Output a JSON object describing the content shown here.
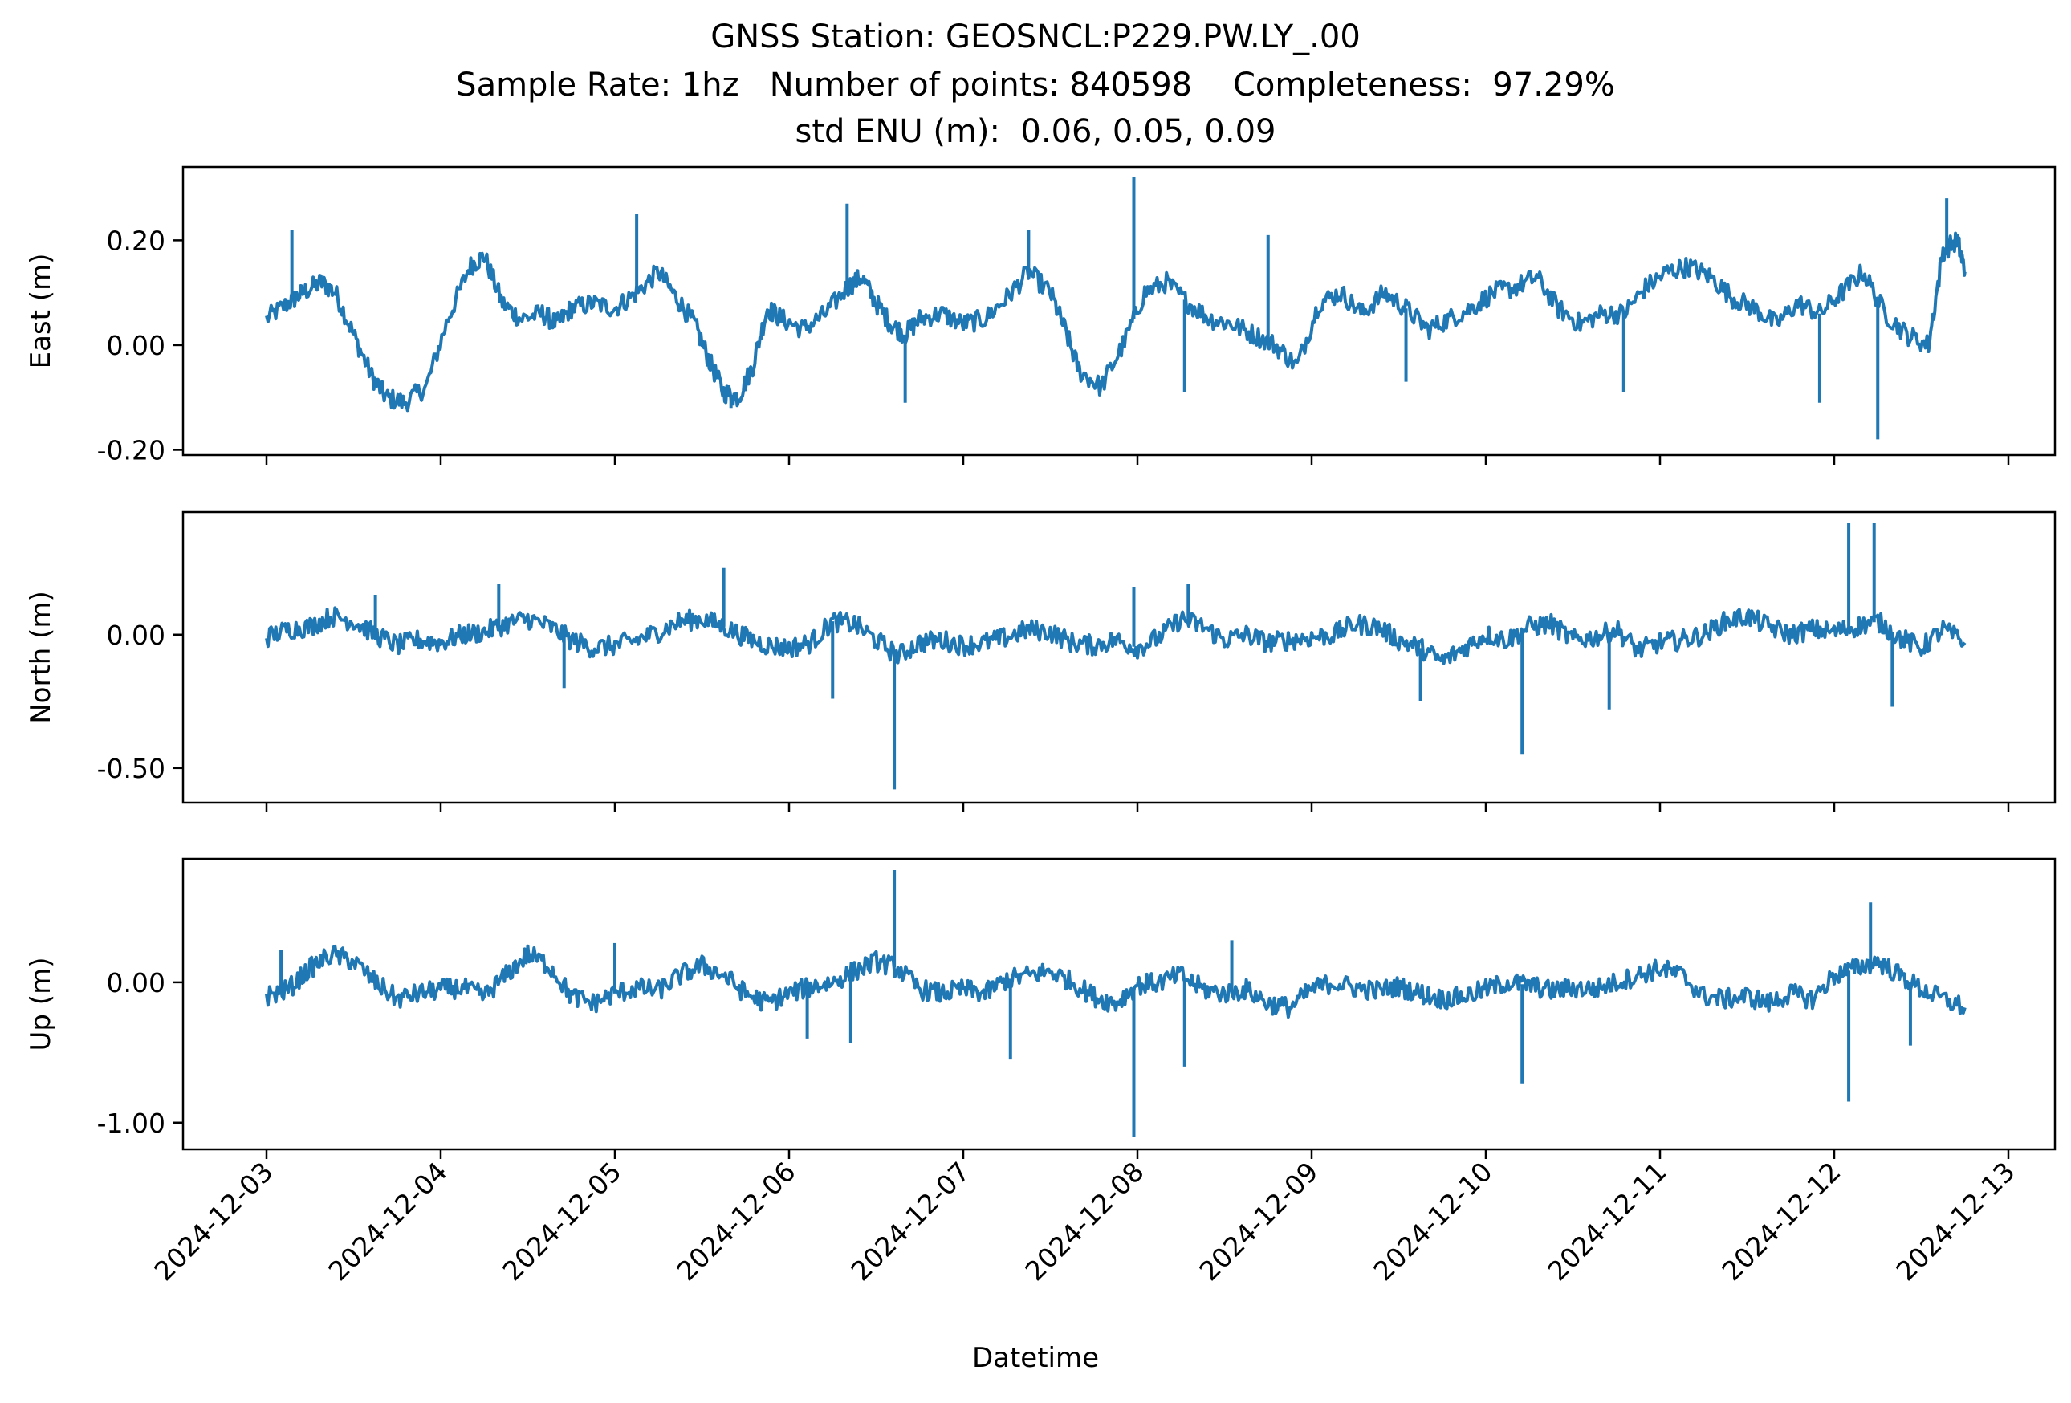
{
  "title_lines": [
    "GNSS Station: GEOSNCL:P229.PW.LY_.00",
    "Sample Rate: 1hz   Number of points: 840598    Completeness:  97.29%",
    "std ENU (m):  0.06, 0.05, 0.09"
  ],
  "colors": {
    "series": "#1f77b4",
    "axes": "#000000",
    "background": "#ffffff"
  },
  "chart_data": {
    "type": "line",
    "xlabel": "Datetime",
    "x_ticks": [
      "2024-12-03",
      "2024-12-04",
      "2024-12-05",
      "2024-12-06",
      "2024-12-07",
      "2024-12-08",
      "2024-12-09",
      "2024-12-10",
      "2024-12-11",
      "2024-12-12",
      "2024-12-13"
    ],
    "xlim": [
      "2024-12-02T12:00",
      "2024-12-13T00:00"
    ],
    "grid": false,
    "panels": [
      {
        "name": "east",
        "ylabel": "East (m)",
        "ylim": [
          -0.21,
          0.34
        ],
        "yticks": [
          0.2,
          0.0,
          -0.2
        ],
        "ytick_labels": [
          "0.20",
          "0.00",
          "-0.20"
        ],
        "series": [
          {
            "t": [
              "2024-12-03T00:00",
              "2024-12-03T03:00",
              "2024-12-03T05:00",
              "2024-12-03T07:30",
              "2024-12-03T09:30",
              "2024-12-03T12:00",
              "2024-12-03T14:30",
              "2024-12-03T16:30",
              "2024-12-03T19:00",
              "2024-12-03T22:00",
              "2024-12-04T01:00",
              "2024-12-04T04:00",
              "2024-12-04T06:00",
              "2024-12-04T08:30",
              "2024-12-04T11:00",
              "2024-12-04T14:00",
              "2024-12-04T16:00",
              "2024-12-04T18:00",
              "2024-12-04T21:00",
              "2024-12-05T00:00",
              "2024-12-05T03:00",
              "2024-12-05T06:00",
              "2024-12-05T08:30",
              "2024-12-05T11:00",
              "2024-12-05T13:00",
              "2024-12-05T15:00",
              "2024-12-05T17:00",
              "2024-12-05T19:00",
              "2024-12-05T21:00",
              "2024-12-05T23:00",
              "2024-12-06T02:00",
              "2024-12-06T05:00",
              "2024-12-06T08:00",
              "2024-12-06T10:00",
              "2024-12-06T12:00",
              "2024-12-06T14:00",
              "2024-12-06T16:00",
              "2024-12-06T18:00",
              "2024-12-06T21:00",
              "2024-12-07T00:00",
              "2024-12-07T03:00",
              "2024-12-07T06:00",
              "2024-12-07T09:00",
              "2024-12-07T12:00",
              "2024-12-07T14:00",
              "2024-12-07T16:00",
              "2024-12-07T19:00",
              "2024-12-07T22:00",
              "2024-12-08T01:00",
              "2024-12-08T04:00",
              "2024-12-08T07:00",
              "2024-12-08T10:00",
              "2024-12-08T13:00",
              "2024-12-08T16:00",
              "2024-12-08T19:00",
              "2024-12-08T22:00",
              "2024-12-09T01:00",
              "2024-12-09T04:00",
              "2024-12-09T07:00",
              "2024-12-09T10:00",
              "2024-12-09T13:00",
              "2024-12-09T16:00",
              "2024-12-09T19:00",
              "2024-12-09T22:00",
              "2024-12-10T01:00",
              "2024-12-10T04:00",
              "2024-12-10T07:00",
              "2024-12-10T10:00",
              "2024-12-10T13:00",
              "2024-12-10T16:00",
              "2024-12-10T19:00",
              "2024-12-10T22:00",
              "2024-12-11T01:00",
              "2024-12-11T04:00",
              "2024-12-11T07:00",
              "2024-12-11T10:00",
              "2024-12-11T13:00",
              "2024-12-11T16:00",
              "2024-12-11T19:00",
              "2024-12-11T22:00",
              "2024-12-12T01:00",
              "2024-12-12T04:00",
              "2024-12-12T07:00",
              "2024-12-12T10:00",
              "2024-12-12T13:00",
              "2024-12-12T15:00",
              "2024-12-12T17:00",
              "2024-12-12T18:00"
            ],
            "values": [
              0.05,
              0.08,
              0.1,
              0.12,
              0.1,
              0.02,
              -0.06,
              -0.1,
              -0.11,
              -0.08,
              0.05,
              0.15,
              0.17,
              0.08,
              0.05,
              0.06,
              0.04,
              0.07,
              0.08,
              0.07,
              0.1,
              0.14,
              0.09,
              0.04,
              -0.03,
              -0.09,
              -0.1,
              -0.04,
              0.07,
              0.05,
              0.03,
              0.06,
              0.11,
              0.13,
              0.08,
              0.04,
              0.02,
              0.05,
              0.06,
              0.04,
              0.05,
              0.09,
              0.14,
              0.1,
              0.03,
              -0.05,
              -0.08,
              0.0,
              0.1,
              0.12,
              0.08,
              0.05,
              0.04,
              0.02,
              0.0,
              -0.04,
              0.08,
              0.1,
              0.06,
              0.1,
              0.07,
              0.03,
              0.05,
              0.07,
              0.1,
              0.11,
              0.13,
              0.07,
              0.04,
              0.06,
              0.06,
              0.11,
              0.14,
              0.15,
              0.13,
              0.09,
              0.07,
              0.04,
              0.08,
              0.06,
              0.1,
              0.14,
              0.06,
              0.02,
              0.0,
              0.18,
              0.2,
              0.14
            ]
          }
        ],
        "spikes": [
          {
            "t": "2024-12-03T03:30",
            "v": 0.22
          },
          {
            "t": "2024-12-05T03:00",
            "v": 0.25
          },
          {
            "t": "2024-12-05T16:00",
            "v": -0.12
          },
          {
            "t": "2024-12-06T08:00",
            "v": 0.27
          },
          {
            "t": "2024-12-06T16:00",
            "v": -0.11
          },
          {
            "t": "2024-12-07T09:00",
            "v": 0.22
          },
          {
            "t": "2024-12-07T23:30",
            "v": 0.32
          },
          {
            "t": "2024-12-08T06:30",
            "v": -0.09
          },
          {
            "t": "2024-12-08T18:00",
            "v": 0.21
          },
          {
            "t": "2024-12-09T13:00",
            "v": -0.07
          },
          {
            "t": "2024-12-10T19:00",
            "v": -0.09
          },
          {
            "t": "2024-12-11T22:00",
            "v": -0.11
          },
          {
            "t": "2024-12-12T06:00",
            "v": -0.18
          },
          {
            "t": "2024-12-12T15:30",
            "v": 0.28
          }
        ]
      },
      {
        "name": "north",
        "ylabel": "North (m)",
        "ylim": [
          -0.63,
          0.46
        ],
        "yticks": [
          0.0,
          -0.5
        ],
        "ytick_labels": [
          "0.00",
          "-0.50"
        ],
        "series": [
          {
            "t": [
              "2024-12-03T00:00",
              "2024-12-03T03:00",
              "2024-12-03T06:00",
              "2024-12-03T09:00",
              "2024-12-03T12:00",
              "2024-12-03T15:00",
              "2024-12-03T18:00",
              "2024-12-03T21:00",
              "2024-12-04T00:00",
              "2024-12-04T03:00",
              "2024-12-04T06:00",
              "2024-12-04T09:00",
              "2024-12-04T12:00",
              "2024-12-04T15:00",
              "2024-12-04T18:00",
              "2024-12-04T21:00",
              "2024-12-05T00:00",
              "2024-12-05T03:00",
              "2024-12-05T06:00",
              "2024-12-05T09:00",
              "2024-12-05T12:00",
              "2024-12-05T15:00",
              "2024-12-05T18:00",
              "2024-12-05T21:00",
              "2024-12-06T00:00",
              "2024-12-06T03:00",
              "2024-12-06T06:00",
              "2024-12-06T09:00",
              "2024-12-06T12:00",
              "2024-12-06T15:00",
              "2024-12-06T18:00",
              "2024-12-06T21:00",
              "2024-12-07T00:00",
              "2024-12-07T03:00",
              "2024-12-07T06:00",
              "2024-12-07T09:00",
              "2024-12-07T12:00",
              "2024-12-07T15:00",
              "2024-12-07T18:00",
              "2024-12-07T21:00",
              "2024-12-08T00:00",
              "2024-12-08T03:00",
              "2024-12-08T06:00",
              "2024-12-08T09:00",
              "2024-12-08T12:00",
              "2024-12-08T15:00",
              "2024-12-08T18:00",
              "2024-12-08T21:00",
              "2024-12-09T00:00",
              "2024-12-09T03:00",
              "2024-12-09T06:00",
              "2024-12-09T09:00",
              "2024-12-09T12:00",
              "2024-12-09T15:00",
              "2024-12-09T18:00",
              "2024-12-09T21:00",
              "2024-12-10T00:00",
              "2024-12-10T03:00",
              "2024-12-10T06:00",
              "2024-12-10T09:00",
              "2024-12-10T12:00",
              "2024-12-10T15:00",
              "2024-12-10T18:00",
              "2024-12-10T21:00",
              "2024-12-11T00:00",
              "2024-12-11T03:00",
              "2024-12-11T06:00",
              "2024-12-11T09:00",
              "2024-12-11T12:00",
              "2024-12-11T15:00",
              "2024-12-11T18:00",
              "2024-12-11T21:00",
              "2024-12-12T00:00",
              "2024-12-12T03:00",
              "2024-12-12T06:00",
              "2024-12-12T09:00",
              "2024-12-12T12:00",
              "2024-12-12T15:00",
              "2024-12-12T18:00"
            ],
            "values": [
              -0.01,
              0.02,
              0.03,
              0.07,
              0.05,
              0.0,
              -0.04,
              -0.02,
              -0.03,
              0.0,
              0.01,
              0.04,
              0.06,
              0.03,
              -0.02,
              -0.05,
              -0.04,
              -0.02,
              0.01,
              0.05,
              0.06,
              0.03,
              -0.01,
              -0.04,
              -0.05,
              -0.03,
              0.05,
              0.04,
              -0.02,
              -0.08,
              -0.03,
              -0.02,
              -0.04,
              -0.03,
              -0.01,
              0.02,
              0.01,
              -0.03,
              -0.04,
              -0.02,
              -0.05,
              -0.01,
              0.06,
              0.03,
              -0.02,
              0.0,
              -0.03,
              -0.02,
              -0.01,
              0.0,
              0.04,
              0.03,
              -0.02,
              -0.05,
              -0.1,
              -0.05,
              0.0,
              -0.02,
              0.03,
              0.04,
              -0.02,
              -0.01,
              0.02,
              -0.06,
              -0.03,
              -0.02,
              0.0,
              0.05,
              0.07,
              0.03,
              0.0,
              0.02,
              0.01,
              0.03,
              0.05,
              -0.01,
              -0.05,
              0.02,
              -0.03
            ]
          }
        ],
        "spikes": [
          {
            "t": "2024-12-03T15:00",
            "v": 0.15
          },
          {
            "t": "2024-12-04T08:00",
            "v": 0.19
          },
          {
            "t": "2024-12-04T17:00",
            "v": -0.2
          },
          {
            "t": "2024-12-05T15:00",
            "v": 0.25
          },
          {
            "t": "2024-12-06T06:00",
            "v": -0.24
          },
          {
            "t": "2024-12-06T14:30",
            "v": -0.58
          },
          {
            "t": "2024-12-07T23:30",
            "v": 0.18
          },
          {
            "t": "2024-12-08T07:00",
            "v": 0.19
          },
          {
            "t": "2024-12-09T15:00",
            "v": -0.25
          },
          {
            "t": "2024-12-10T05:00",
            "v": -0.45
          },
          {
            "t": "2024-12-10T17:00",
            "v": -0.28
          },
          {
            "t": "2024-12-12T02:00",
            "v": 0.42
          },
          {
            "t": "2024-12-12T05:30",
            "v": 0.42
          },
          {
            "t": "2024-12-12T08:00",
            "v": -0.27
          }
        ]
      },
      {
        "name": "up",
        "ylabel": "Up (m)",
        "ylim": [
          -1.19,
          0.88
        ],
        "yticks": [
          0.0,
          -1.0
        ],
        "ytick_labels": [
          "0.00",
          "-1.00"
        ],
        "series": [
          {
            "t": [
              "2024-12-03T00:00",
              "2024-12-03T03:00",
              "2024-12-03T06:00",
              "2024-12-03T09:00",
              "2024-12-03T12:00",
              "2024-12-03T15:00",
              "2024-12-03T18:00",
              "2024-12-03T21:00",
              "2024-12-04T00:00",
              "2024-12-04T03:00",
              "2024-12-04T06:00",
              "2024-12-04T09:00",
              "2024-12-04T12:00",
              "2024-12-04T15:00",
              "2024-12-04T18:00",
              "2024-12-04T21:00",
              "2024-12-05T00:00",
              "2024-12-05T03:00",
              "2024-12-05T06:00",
              "2024-12-05T09:00",
              "2024-12-05T12:00",
              "2024-12-05T15:00",
              "2024-12-05T18:00",
              "2024-12-05T21:00",
              "2024-12-06T00:00",
              "2024-12-06T03:00",
              "2024-12-06T06:00",
              "2024-12-06T09:00",
              "2024-12-06T12:00",
              "2024-12-06T15:00",
              "2024-12-06T18:00",
              "2024-12-06T21:00",
              "2024-12-07T00:00",
              "2024-12-07T03:00",
              "2024-12-07T06:00",
              "2024-12-07T09:00",
              "2024-12-07T12:00",
              "2024-12-07T15:00",
              "2024-12-07T18:00",
              "2024-12-07T21:00",
              "2024-12-08T00:00",
              "2024-12-08T03:00",
              "2024-12-08T06:00",
              "2024-12-08T09:00",
              "2024-12-08T12:00",
              "2024-12-08T15:00",
              "2024-12-08T18:00",
              "2024-12-08T21:00",
              "2024-12-09T00:00",
              "2024-12-09T03:00",
              "2024-12-09T06:00",
              "2024-12-09T09:00",
              "2024-12-09T12:00",
              "2024-12-09T15:00",
              "2024-12-09T18:00",
              "2024-12-09T21:00",
              "2024-12-10T00:00",
              "2024-12-10T03:00",
              "2024-12-10T06:00",
              "2024-12-10T09:00",
              "2024-12-10T12:00",
              "2024-12-10T15:00",
              "2024-12-10T18:00",
              "2024-12-10T21:00",
              "2024-12-11T00:00",
              "2024-12-11T03:00",
              "2024-12-11T06:00",
              "2024-12-11T09:00",
              "2024-12-11T12:00",
              "2024-12-11T15:00",
              "2024-12-11T18:00",
              "2024-12-11T21:00",
              "2024-12-12T00:00",
              "2024-12-12T03:00",
              "2024-12-12T06:00",
              "2024-12-12T09:00",
              "2024-12-12T12:00",
              "2024-12-12T15:00",
              "2024-12-12T18:00"
            ],
            "values": [
              -0.1,
              -0.05,
              0.1,
              0.2,
              0.15,
              0.0,
              -0.12,
              -0.08,
              -0.05,
              -0.04,
              -0.1,
              0.05,
              0.2,
              0.12,
              -0.1,
              -0.15,
              -0.08,
              -0.04,
              -0.06,
              0.05,
              0.12,
              0.05,
              -0.08,
              -0.15,
              -0.08,
              -0.03,
              0.0,
              0.08,
              0.15,
              0.1,
              -0.05,
              -0.08,
              -0.05,
              -0.08,
              0.02,
              0.05,
              0.08,
              0.0,
              -0.1,
              -0.15,
              -0.02,
              0.0,
              0.05,
              -0.05,
              -0.08,
              -0.05,
              -0.15,
              -0.18,
              -0.05,
              0.0,
              -0.04,
              -0.06,
              -0.03,
              -0.08,
              -0.12,
              -0.1,
              -0.05,
              0.0,
              -0.02,
              -0.06,
              -0.04,
              -0.05,
              0.0,
              0.05,
              0.1,
              0.05,
              -0.1,
              -0.12,
              -0.1,
              -0.15,
              -0.08,
              -0.12,
              0.05,
              0.1,
              0.15,
              0.05,
              -0.05,
              -0.12,
              -0.18
            ]
          }
        ],
        "spikes": [
          {
            "t": "2024-12-03T02:00",
            "v": 0.23
          },
          {
            "t": "2024-12-05T00:00",
            "v": 0.28
          },
          {
            "t": "2024-12-06T02:30",
            "v": -0.4
          },
          {
            "t": "2024-12-06T08:30",
            "v": -0.43
          },
          {
            "t": "2024-12-06T14:30",
            "v": 0.8
          },
          {
            "t": "2024-12-07T06:30",
            "v": -0.55
          },
          {
            "t": "2024-12-07T23:30",
            "v": -1.1
          },
          {
            "t": "2024-12-08T06:30",
            "v": -0.6
          },
          {
            "t": "2024-12-08T13:00",
            "v": 0.3
          },
          {
            "t": "2024-12-10T05:00",
            "v": -0.72
          },
          {
            "t": "2024-12-12T02:00",
            "v": -0.85
          },
          {
            "t": "2024-12-12T05:00",
            "v": 0.57
          },
          {
            "t": "2024-12-12T10:30",
            "v": -0.45
          }
        ]
      }
    ]
  }
}
